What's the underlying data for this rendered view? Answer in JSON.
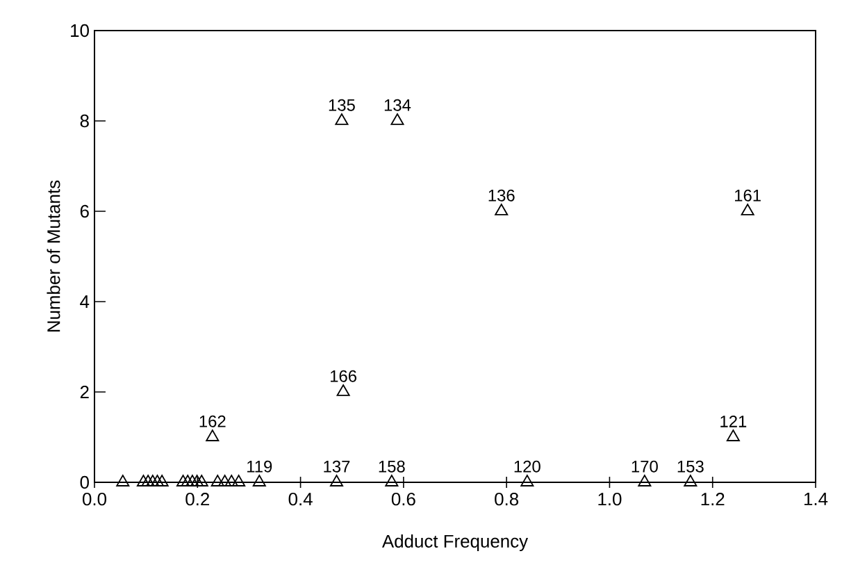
{
  "chart_data": {
    "type": "scatter",
    "xlabel": "Adduct Frequency",
    "ylabel": "Number of Mutants",
    "marker": "triangle",
    "xlim": [
      0,
      1.4
    ],
    "ylim": [
      0,
      10
    ],
    "xticks": [
      {
        "value": 0,
        "label": "0.0"
      },
      0.2,
      0.4,
      0.6,
      0.8,
      {
        "value": 1,
        "label": "1.0"
      },
      1.2,
      1.4
    ],
    "yticks": [
      0,
      2,
      4,
      6,
      8,
      10
    ],
    "series": [
      {
        "color": "#000000",
        "x": [
          0.48,
          0.588,
          0.79,
          1.268,
          0.483,
          0.229,
          1.24,
          0.32,
          0.47,
          0.577,
          0.84,
          1.068,
          1.157,
          0.055,
          0.095,
          0.104,
          0.113,
          0.122,
          0.131,
          0.172,
          0.181,
          0.19,
          0.199,
          0.208,
          0.239,
          0.253,
          0.266,
          0.28
        ],
        "values": [
          8,
          8,
          6,
          6,
          2,
          1,
          1,
          0,
          0,
          0,
          0,
          0,
          0,
          0,
          0,
          0,
          0,
          0,
          0,
          0,
          0,
          0,
          0,
          0,
          0,
          0,
          0,
          0
        ]
      }
    ],
    "annotations": [
      {
        "text": "135",
        "x": 0.48,
        "y": 8
      },
      {
        "text": "134",
        "x": 0.588,
        "y": 8
      },
      {
        "text": "136",
        "x": 0.79,
        "y": 6
      },
      {
        "text": "161",
        "x": 1.268,
        "y": 6
      },
      {
        "text": "166",
        "x": 0.483,
        "y": 2
      },
      {
        "text": "162",
        "x": 0.229,
        "y": 1
      },
      {
        "text": "121",
        "x": 1.24,
        "y": 1
      },
      {
        "text": "119",
        "x": 0.32,
        "y": 0
      },
      {
        "text": "137",
        "x": 0.47,
        "y": 0
      },
      {
        "text": "158",
        "x": 0.577,
        "y": 0
      },
      {
        "text": "120",
        "x": 0.84,
        "y": 0
      },
      {
        "text": "170",
        "x": 1.068,
        "y": 0
      },
      {
        "text": "153",
        "x": 1.157,
        "y": 0
      }
    ]
  }
}
